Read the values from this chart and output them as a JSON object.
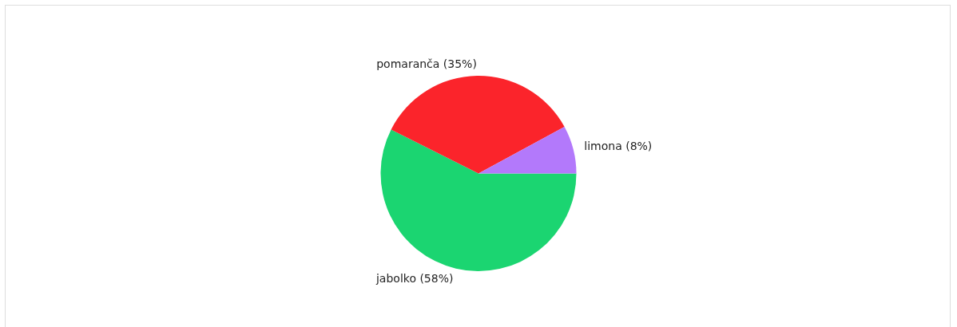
{
  "chart_data": {
    "type": "pie",
    "categories": [
      "jabolko",
      "pomaranča",
      "limona"
    ],
    "values": [
      58,
      35,
      8
    ],
    "colors": [
      "#1bd571",
      "#fb242b",
      "#b379fb"
    ],
    "value_labels": [
      "(58%)",
      "(35%)",
      "(8%)"
    ],
    "legend": false
  }
}
